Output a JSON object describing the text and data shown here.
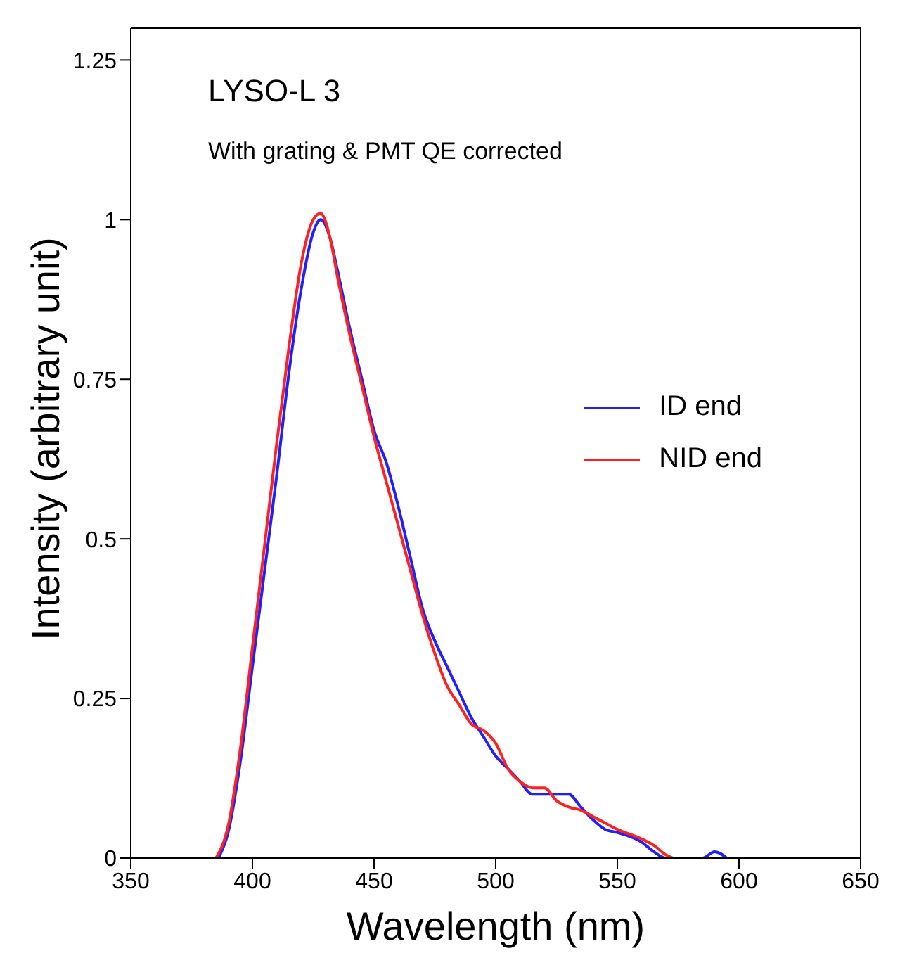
{
  "chart_data": {
    "type": "line",
    "title": "LYSO-L 3",
    "subtitle": "With grating & PMT QE corrected",
    "xlabel": "Wavelength (nm)",
    "ylabel": "Intensity (arbitrary unit)",
    "xlim": [
      350,
      650
    ],
    "xticks": [
      350,
      400,
      450,
      500,
      550,
      600,
      650
    ],
    "ylim": [
      0,
      1.3
    ],
    "yticks": [
      0,
      0.25,
      0.5,
      0.75,
      1,
      1.25
    ],
    "grid": false,
    "legend": "right",
    "marker": "none",
    "line_style": "solid",
    "series": [
      {
        "name": "ID end",
        "color": "#1f1fff",
        "x": [
          386,
          390,
          395,
          400,
          405,
          410,
          415,
          420,
          425,
          428,
          432,
          435,
          440,
          445,
          450,
          455,
          460,
          465,
          470,
          475,
          480,
          485,
          490,
          495,
          500,
          505,
          510,
          515,
          520,
          525,
          530,
          535,
          540,
          545,
          550,
          560,
          565,
          570,
          572,
          585,
          590,
          595
        ],
        "values": [
          0,
          0.04,
          0.15,
          0.3,
          0.45,
          0.6,
          0.76,
          0.89,
          0.98,
          1,
          0.97,
          0.92,
          0.83,
          0.75,
          0.67,
          0.62,
          0.55,
          0.47,
          0.39,
          0.34,
          0.3,
          0.26,
          0.22,
          0.19,
          0.16,
          0.14,
          0.12,
          0.1,
          0.1,
          0.1,
          0.1,
          0.08,
          0.06,
          0.045,
          0.04,
          0.025,
          0.01,
          0,
          0,
          0,
          0.01,
          0
        ]
      },
      {
        "name": "NID end",
        "color": "#ff2020",
        "x": [
          385,
          390,
          395,
          400,
          405,
          410,
          415,
          420,
          425,
          428,
          432,
          435,
          440,
          445,
          450,
          455,
          460,
          465,
          470,
          475,
          480,
          485,
          490,
          495,
          500,
          505,
          510,
          515,
          520,
          525,
          530,
          535,
          540,
          545,
          550,
          560,
          565,
          570,
          573
        ],
        "values": [
          0,
          0.05,
          0.17,
          0.33,
          0.49,
          0.65,
          0.8,
          0.93,
          1,
          1.01,
          0.97,
          0.91,
          0.82,
          0.74,
          0.66,
          0.59,
          0.52,
          0.45,
          0.38,
          0.32,
          0.27,
          0.24,
          0.21,
          0.2,
          0.18,
          0.14,
          0.12,
          0.11,
          0.11,
          0.09,
          0.08,
          0.075,
          0.065,
          0.055,
          0.045,
          0.03,
          0.02,
          0.005,
          0
        ]
      }
    ]
  }
}
